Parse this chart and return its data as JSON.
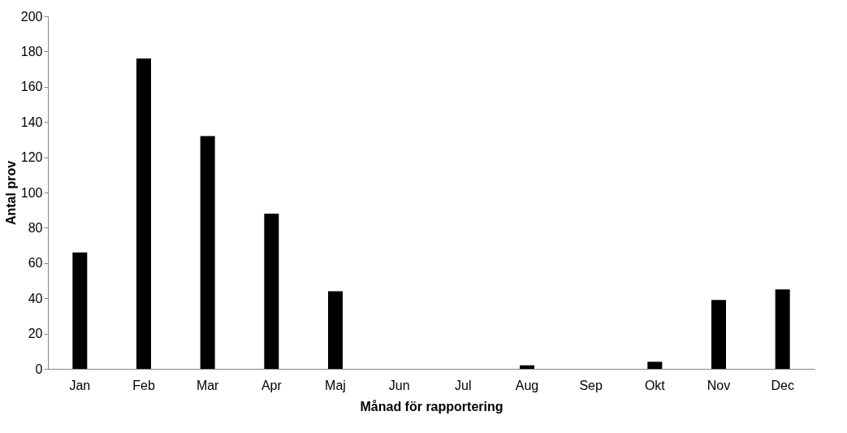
{
  "chart_data": {
    "type": "bar",
    "xlabel": "Månad för rapportering",
    "ylabel": "Antal prov",
    "categories": [
      "Jan",
      "Feb",
      "Mar",
      "Apr",
      "Maj",
      "Jun",
      "Jul",
      "Aug",
      "Sep",
      "Okt",
      "Nov",
      "Dec"
    ],
    "values": [
      66,
      176,
      132,
      88,
      44,
      0,
      0,
      2,
      0,
      4,
      39,
      45
    ],
    "color": "#000000",
    "ylim": [
      0,
      200
    ],
    "yticks": [
      0,
      20,
      40,
      60,
      80,
      100,
      120,
      140,
      160,
      180,
      200
    ],
    "grid": false
  }
}
